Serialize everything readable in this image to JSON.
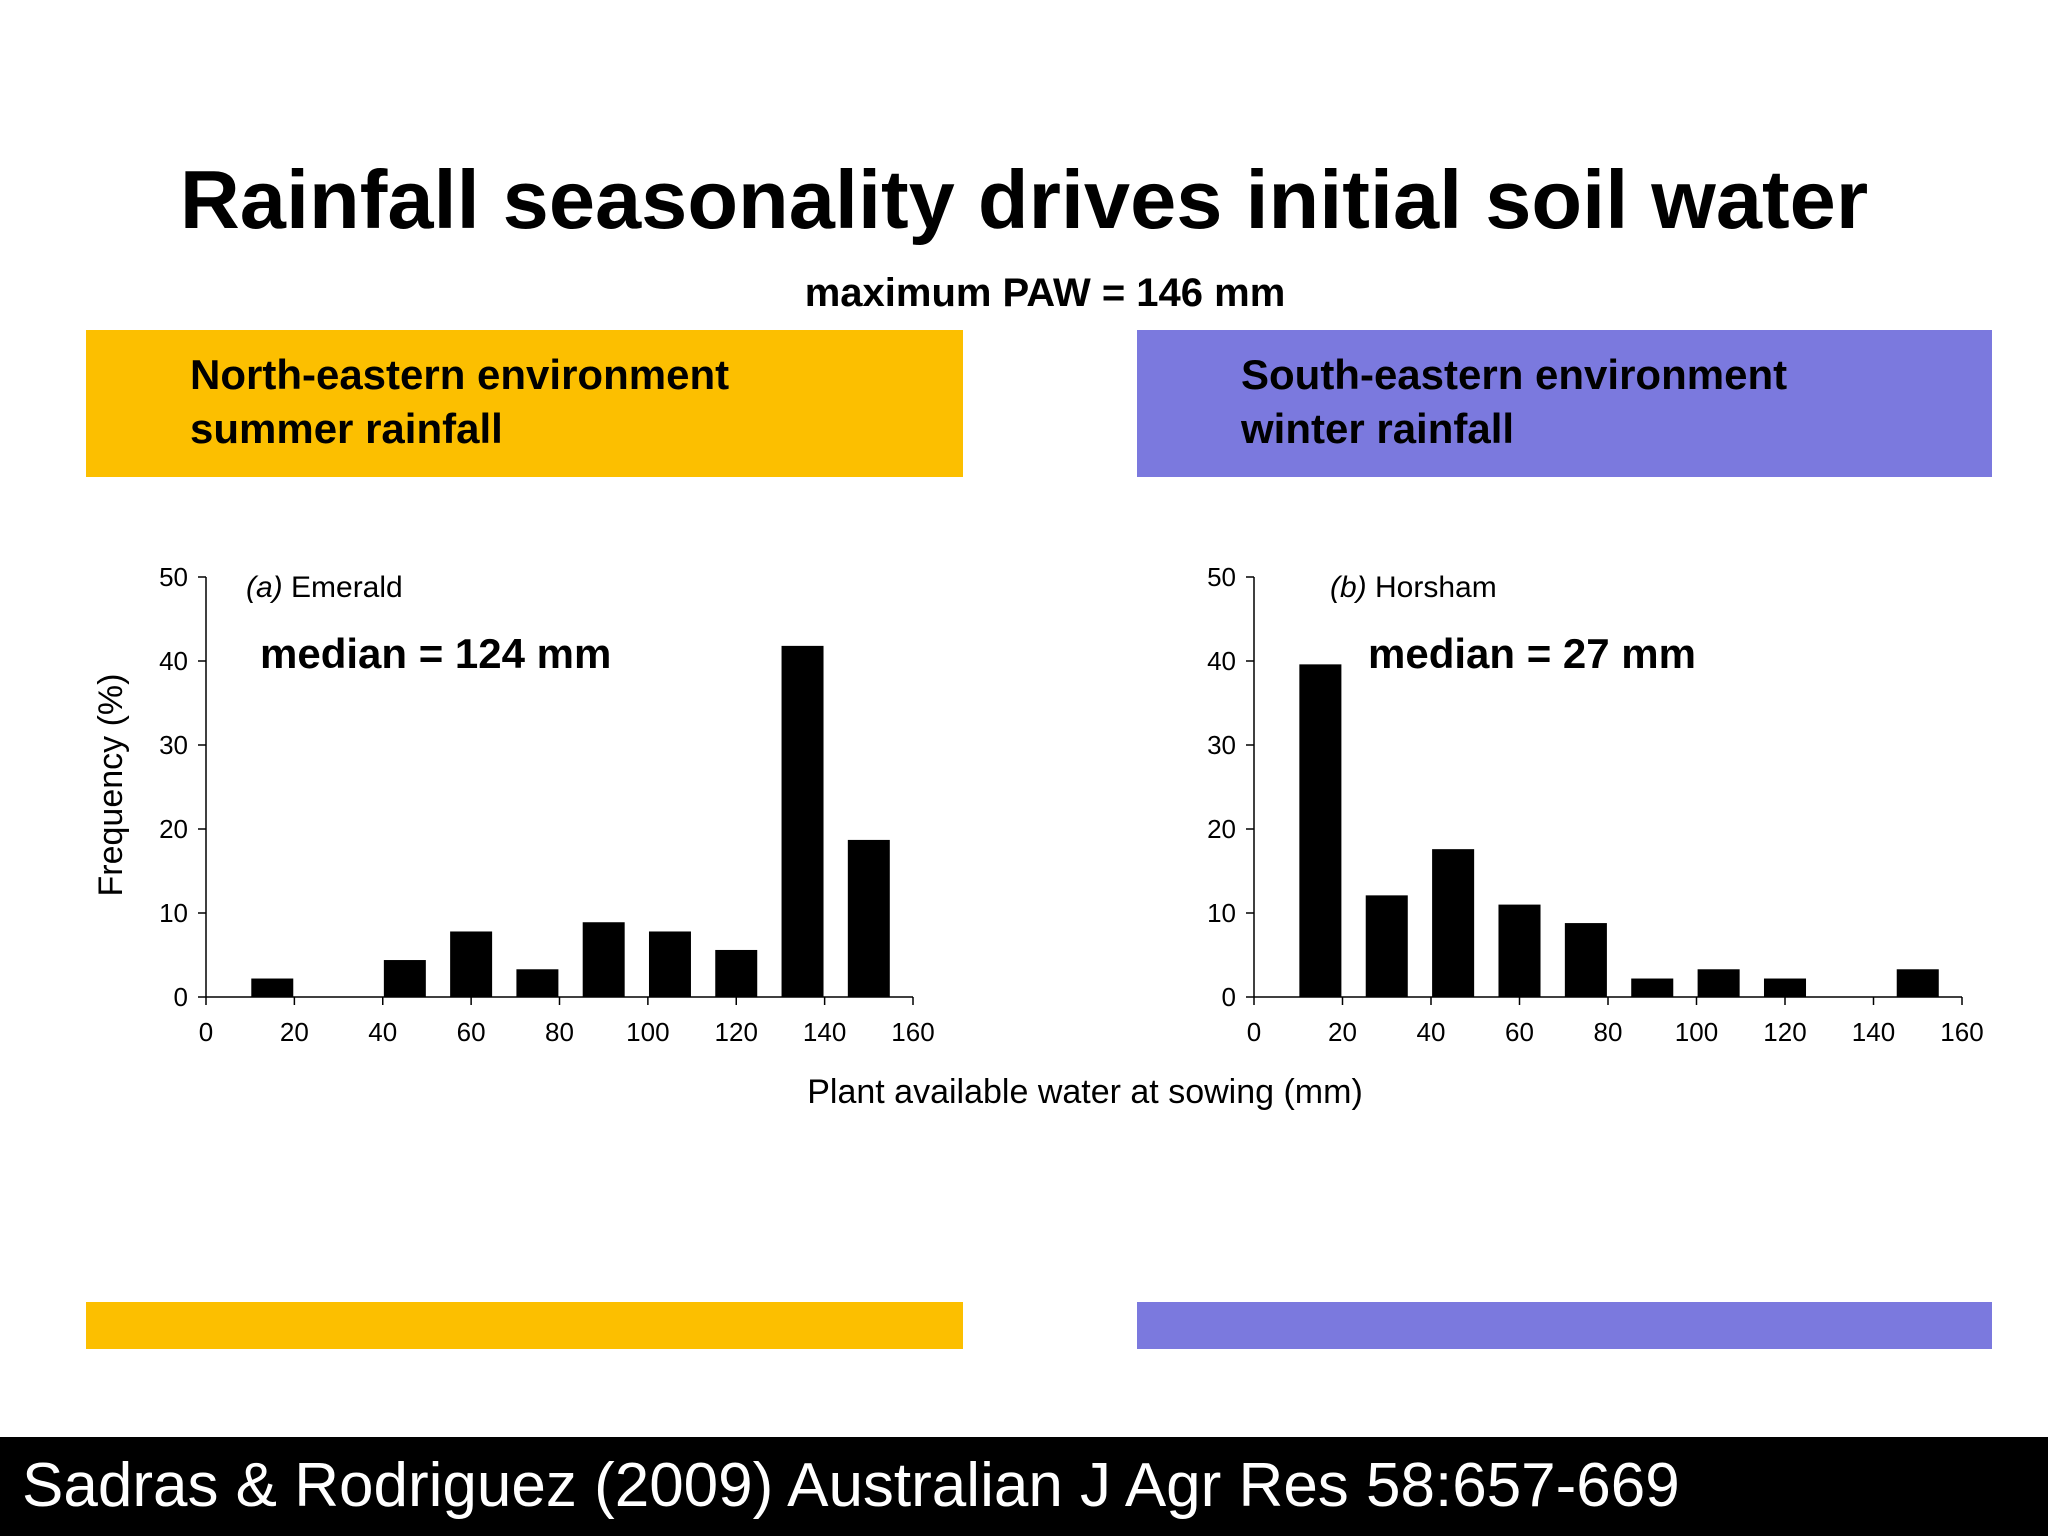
{
  "title": "Rainfall seasonality drives initial soil water",
  "subtitle": "maximum PAW = 146 mm",
  "environments": [
    {
      "line1": "North-eastern environment",
      "line2": "summer rainfall",
      "color": "#FCBF00"
    },
    {
      "line1": "South-eastern environment",
      "line2": "winter rainfall",
      "color": "#7B79DE"
    }
  ],
  "footer": "Sadras & Rodriguez (2009) Australian J Agr Res 58:657-669",
  "chart_data": [
    {
      "type": "bar",
      "panel_prefix": "(a)",
      "panel_name": "Emerald",
      "annotation": "median = 124 mm",
      "x": [
        15,
        30,
        45,
        60,
        75,
        90,
        105,
        120,
        135,
        150
      ],
      "values": [
        2.2,
        0,
        4.4,
        7.8,
        3.3,
        8.9,
        7.8,
        5.6,
        41.8,
        18.7
      ],
      "xlim": [
        0,
        160
      ],
      "ylim": [
        0,
        50
      ],
      "xticks": [
        0,
        20,
        40,
        60,
        80,
        100,
        120,
        140,
        160
      ],
      "yticks": [
        0,
        10,
        20,
        30,
        40,
        50
      ],
      "ylabel": "Frequency (%)",
      "color": "#000000"
    },
    {
      "type": "bar",
      "panel_prefix": "(b)",
      "panel_name": "Horsham",
      "annotation": "median = 27 mm",
      "x": [
        15,
        30,
        45,
        60,
        75,
        90,
        105,
        120,
        135,
        150
      ],
      "values": [
        39.6,
        12.1,
        17.6,
        11.0,
        8.8,
        2.2,
        3.3,
        2.2,
        0,
        3.3
      ],
      "xlim": [
        0,
        160
      ],
      "ylim": [
        0,
        50
      ],
      "xticks": [
        0,
        20,
        40,
        60,
        80,
        100,
        120,
        140,
        160
      ],
      "yticks": [
        0,
        10,
        20,
        30,
        40,
        50
      ],
      "color": "#000000"
    }
  ],
  "shared_xlabel": "Plant available water at sowing (mm)"
}
